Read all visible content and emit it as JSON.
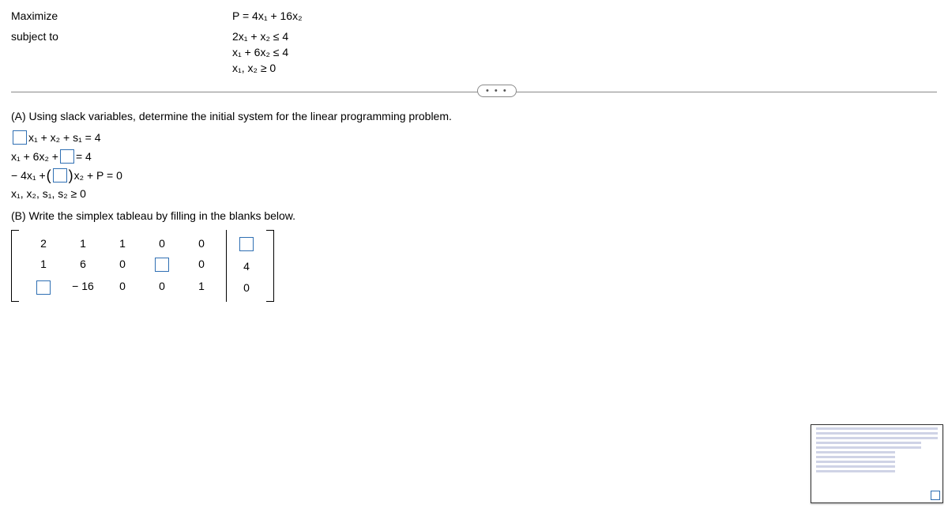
{
  "problem": {
    "maximize_label": "Maximize",
    "subject_label": "subject to",
    "objective": "P = 4x₁ + 16x₂",
    "c1": "2x₁ + x₂ ≤ 4",
    "c2": "x₁ + 6x₂ ≤ 4",
    "c3": "x₁, x₂ ≥ 0"
  },
  "partA": {
    "label": "(A)  Using slack variables, determine the initial system for the linear programming problem.",
    "eq1_tail": "x₁ + x₂ + s₁ = 4",
    "eq2_head": "x₁ + 6x₂ + ",
    "eq2_tail": " = 4",
    "eq3_head": "− 4x₁ + ",
    "eq3_mid_tail": " x₂ + P = 0",
    "eq4": "x₁, x₂, s₁, s₂ ≥ 0"
  },
  "partB": {
    "label": "(B)  Write the simplex tableau by filling in the blanks below.",
    "matrix": [
      [
        "2",
        "1",
        "1",
        "0",
        "0"
      ],
      [
        "1",
        "6",
        "0",
        "□",
        "0"
      ],
      [
        "□",
        "− 16",
        "0",
        "0",
        "1"
      ]
    ],
    "aug": [
      "□",
      "4",
      "0"
    ]
  },
  "dots": "• • •"
}
